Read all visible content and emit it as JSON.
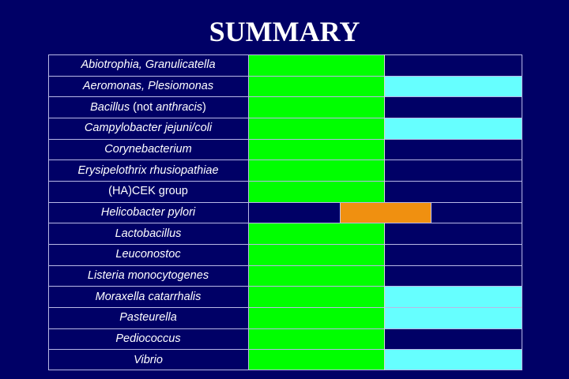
{
  "title": "SUMMARY",
  "colors": {
    "background": "#000066",
    "green": "#00ff00",
    "cyan": "#66ffff",
    "orange": "#f09010",
    "navy": "#000066",
    "gridline": "#b8b8e6",
    "text": "#ffffff"
  },
  "rows": [
    {
      "label_parts": [
        {
          "text": "Abiotrophia, Granulicatella",
          "italic": true
        }
      ],
      "label": "Abiotrophia, Granulicatella",
      "mid": "green",
      "right": "navy"
    },
    {
      "label_parts": [
        {
          "text": "Aeromonas, Plesiomonas",
          "italic": true
        }
      ],
      "label": "Aeromonas, Plesiomonas",
      "mid": "green",
      "right": "cyan"
    },
    {
      "label_parts": [
        {
          "text": "Bacillus",
          "italic": true
        },
        {
          "text": " (not ",
          "italic": false
        },
        {
          "text": "anthracis",
          "italic": true
        },
        {
          "text": ")",
          "italic": false
        }
      ],
      "label": "Bacillus (not anthracis)",
      "mid": "green",
      "right": "navy"
    },
    {
      "label_parts": [
        {
          "text": "Campylobacter jejuni/coli",
          "italic": true
        }
      ],
      "label": "Campylobacter jejuni/coli",
      "mid": "green",
      "right": "cyan"
    },
    {
      "label_parts": [
        {
          "text": "Corynebacterium",
          "italic": true
        }
      ],
      "label": "Corynebacterium",
      "mid": "green",
      "right": "navy"
    },
    {
      "label_parts": [
        {
          "text": "Erysipelothrix rhusiopathiae",
          "italic": true
        }
      ],
      "label": "Erysipelothrix rhusiopathiae",
      "mid": "green",
      "right": "navy"
    },
    {
      "label_parts": [
        {
          "text": "(HA)CEK group",
          "italic": false
        }
      ],
      "label": "(HA)CEK group",
      "mid": "green",
      "right": "navy"
    },
    {
      "label_parts": [
        {
          "text": "Helicobacter pylori",
          "italic": true
        }
      ],
      "label": "Helicobacter pylori",
      "mid": "navy",
      "right": "navy",
      "spanning": "orange"
    },
    {
      "label_parts": [
        {
          "text": "Lactobacillus",
          "italic": true
        }
      ],
      "label": "Lactobacillus",
      "mid": "green",
      "right": "navy"
    },
    {
      "label_parts": [
        {
          "text": "Leuconostoc",
          "italic": true
        }
      ],
      "label": "Leuconostoc",
      "mid": "green",
      "right": "navy"
    },
    {
      "label_parts": [
        {
          "text": "Listeria monocytogenes",
          "italic": true
        }
      ],
      "label": "Listeria monocytogenes",
      "mid": "green",
      "right": "navy"
    },
    {
      "label_parts": [
        {
          "text": "Moraxella catarrhalis",
          "italic": true
        }
      ],
      "label": "Moraxella catarrhalis",
      "mid": "green",
      "right": "cyan"
    },
    {
      "label_parts": [
        {
          "text": "Pasteurella",
          "italic": true
        }
      ],
      "label": "Pasteurella",
      "mid": "green",
      "right": "cyan"
    },
    {
      "label_parts": [
        {
          "text": "Pediococcus",
          "italic": true
        }
      ],
      "label": "Pediococcus",
      "mid": "green",
      "right": "navy"
    },
    {
      "label_parts": [
        {
          "text": "Vibrio",
          "italic": true
        }
      ],
      "label": "Vibrio",
      "mid": "green",
      "right": "cyan"
    }
  ]
}
